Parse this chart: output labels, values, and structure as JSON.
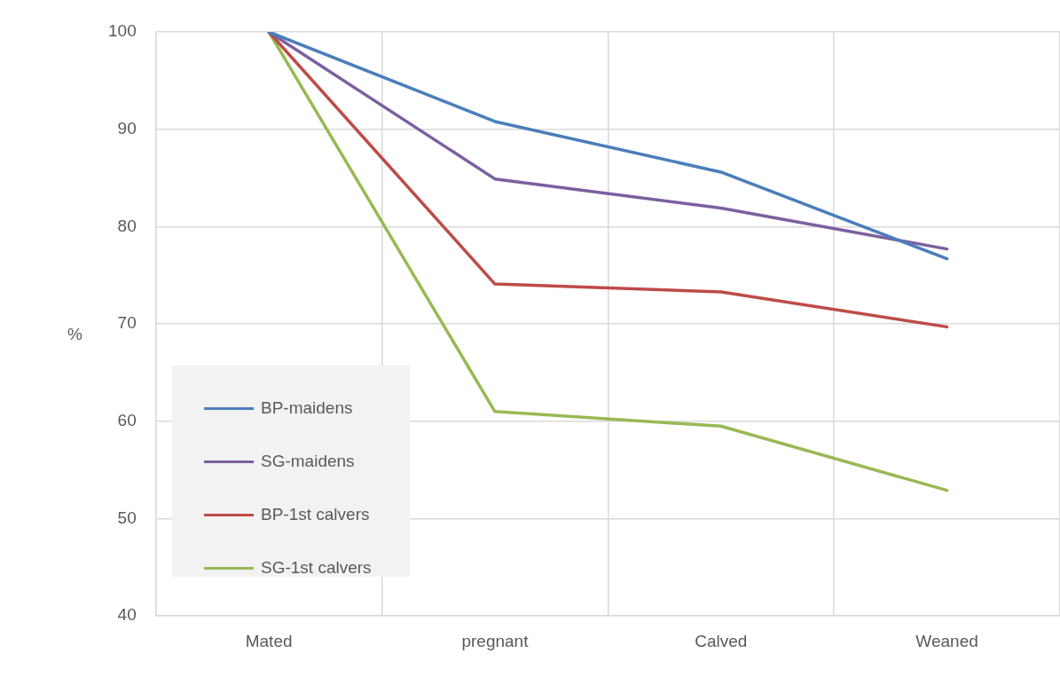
{
  "chart_data": {
    "type": "line",
    "ylabel": "%",
    "categories": [
      "Mated",
      "pregnant",
      "Calved",
      "Weaned"
    ],
    "series": [
      {
        "name": "BP-maidens",
        "color": "#4a7ebb",
        "values": [
          100,
          90.8,
          85.6,
          76.7
        ]
      },
      {
        "name": "SG-maidens",
        "color": "#7d5fa0",
        "values": [
          100,
          84.9,
          81.9,
          77.7
        ]
      },
      {
        "name": "BP-1st calvers",
        "color": "#be4b48",
        "values": [
          100,
          74.1,
          73.3,
          69.7
        ]
      },
      {
        "name": "SG-1st calvers",
        "color": "#98b954",
        "values": [
          100,
          61,
          59.5,
          52.9
        ]
      }
    ],
    "ylim": [
      40,
      100
    ],
    "yticks": [
      40,
      50,
      60,
      70,
      80,
      90,
      100
    ],
    "grid": true,
    "legend": "left",
    "marker": "none",
    "line_style": "solid"
  }
}
